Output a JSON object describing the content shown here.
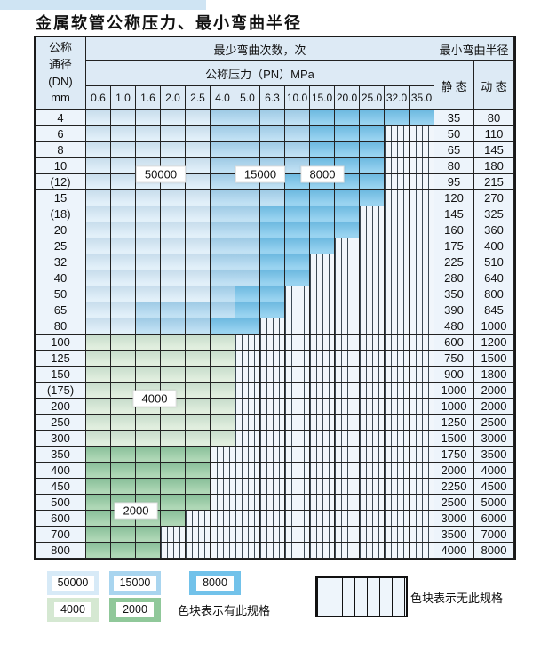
{
  "page": {
    "title": "金属软管公称压力、最小弯曲半径"
  },
  "colors": {
    "light_blue": "#d7eaf7",
    "mid_blue": "#a9d5ef",
    "dark_blue": "#72c2ea",
    "light_green": "#d5e8d2",
    "dark_green": "#90c89a",
    "hatch_bg": "#f1f6fb",
    "header_bg": "#ddeaf5",
    "side_bg": "#edf4fb",
    "grid": "#222222"
  },
  "table": {
    "dn_header_lines": [
      "公称",
      "通径",
      "(DN)",
      "mm"
    ],
    "bend_count_header": "最少弯曲次数，次",
    "pressure_header": "公称压力（PN）MPa",
    "radius_header": "最小弯曲半径",
    "static_header": "静 态",
    "dynamic_header": "动 态",
    "pressures": [
      "0.6",
      "1.0",
      "1.6",
      "2.0",
      "2.5",
      "4.0",
      "5.0",
      "6.3",
      "10.0",
      "15.0",
      "20.0",
      "25.0",
      "32.0",
      "35.0"
    ],
    "cell_legend_meaning": {
      "L": "50000",
      "M": "15000",
      "D": "8000",
      "g": "4000",
      "G": "2000",
      "x": "无此规格"
    },
    "rows": [
      {
        "dn": "4",
        "cells": "LLLLLMMMMDDDDD",
        "static": "35",
        "dynamic": "80"
      },
      {
        "dn": "6",
        "cells": "LLLLLMMMMDDDxx",
        "static": "50",
        "dynamic": "110"
      },
      {
        "dn": "8",
        "cells": "LLLLLMMMMDDDxx",
        "static": "65",
        "dynamic": "145"
      },
      {
        "dn": "10",
        "cells": "LLLLLMMMMDDDxx",
        "static": "80",
        "dynamic": "180"
      },
      {
        "dn": "(12)",
        "cells": "LLLLLMMMDDDDxx",
        "static": "95",
        "dynamic": "215"
      },
      {
        "dn": "15",
        "cells": "LLLLLMMMDDDDxx",
        "static": "120",
        "dynamic": "270"
      },
      {
        "dn": "(18)",
        "cells": "LLLLLMMDDDDxxx",
        "static": "145",
        "dynamic": "325"
      },
      {
        "dn": "20",
        "cells": "LLLLLMMDDDDxxx",
        "static": "160",
        "dynamic": "360"
      },
      {
        "dn": "25",
        "cells": "LLLLLMMDDDxxxx",
        "static": "175",
        "dynamic": "400"
      },
      {
        "dn": "32",
        "cells": "LLLLLMMDDxxxxx",
        "static": "225",
        "dynamic": "510"
      },
      {
        "dn": "40",
        "cells": "LLLLLMMDDxxxxx",
        "static": "280",
        "dynamic": "640"
      },
      {
        "dn": "50",
        "cells": "LLLLLMDDxxxxxx",
        "static": "350",
        "dynamic": "800"
      },
      {
        "dn": "65",
        "cells": "LLMMMMDDxxxxxx",
        "static": "390",
        "dynamic": "845"
      },
      {
        "dn": "80",
        "cells": "LLMMMDDxxxxxxx",
        "static": "480",
        "dynamic": "1000"
      },
      {
        "dn": "100",
        "cells": "ggggggxxxxxxxx",
        "static": "600",
        "dynamic": "1200"
      },
      {
        "dn": "125",
        "cells": "ggggggxxxxxxxx",
        "static": "750",
        "dynamic": "1500"
      },
      {
        "dn": "150",
        "cells": "ggggggxxxxxxxx",
        "static": "900",
        "dynamic": "1800"
      },
      {
        "dn": "(175)",
        "cells": "ggggggxxxxxxxx",
        "static": "1000",
        "dynamic": "2000"
      },
      {
        "dn": "200",
        "cells": "ggggggxxxxxxxx",
        "static": "1000",
        "dynamic": "2000"
      },
      {
        "dn": "250",
        "cells": "ggggggxxxxxxxx",
        "static": "1250",
        "dynamic": "2500"
      },
      {
        "dn": "300",
        "cells": "ggggggxxxxxxxx",
        "static": "1500",
        "dynamic": "3000"
      },
      {
        "dn": "350",
        "cells": "GGGGGxxxxxxxxx",
        "static": "1750",
        "dynamic": "3500"
      },
      {
        "dn": "400",
        "cells": "GGGGGxxxxxxxxx",
        "static": "2000",
        "dynamic": "4000"
      },
      {
        "dn": "450",
        "cells": "GGGGGxxxxxxxxx",
        "static": "2250",
        "dynamic": "4500"
      },
      {
        "dn": "500",
        "cells": "GGGGGxxxxxxxxx",
        "static": "2500",
        "dynamic": "5000"
      },
      {
        "dn": "600",
        "cells": "GGGGxxxxxxxxxx",
        "static": "3000",
        "dynamic": "6000"
      },
      {
        "dn": "700",
        "cells": "GGGxxxxxxxxxxx",
        "static": "3500",
        "dynamic": "7000"
      },
      {
        "dn": "800",
        "cells": "GGGxxxxxxxxxxx",
        "static": "4000",
        "dynamic": "8000"
      }
    ],
    "annotations": [
      {
        "text": "50000",
        "col": 3.0,
        "row": 4
      },
      {
        "text": "15000",
        "col": 7.0,
        "row": 4
      },
      {
        "text": "8000",
        "col": 9.5,
        "row": 4
      },
      {
        "text": "4000",
        "col": 2.75,
        "row": 18
      },
      {
        "text": "2000",
        "col": 2.0,
        "row": 25
      }
    ]
  },
  "legend": {
    "spec_swatches": [
      {
        "label": "50000",
        "color": "light_blue"
      },
      {
        "label": "15000",
        "color": "mid_blue"
      },
      {
        "label": "8000",
        "color": "dark_blue"
      },
      {
        "label": "4000",
        "color": "light_green"
      },
      {
        "label": "2000",
        "color": "dark_green"
      }
    ],
    "spec_note": "色块表示有此规格",
    "none_note": "色块表示无此规格"
  }
}
